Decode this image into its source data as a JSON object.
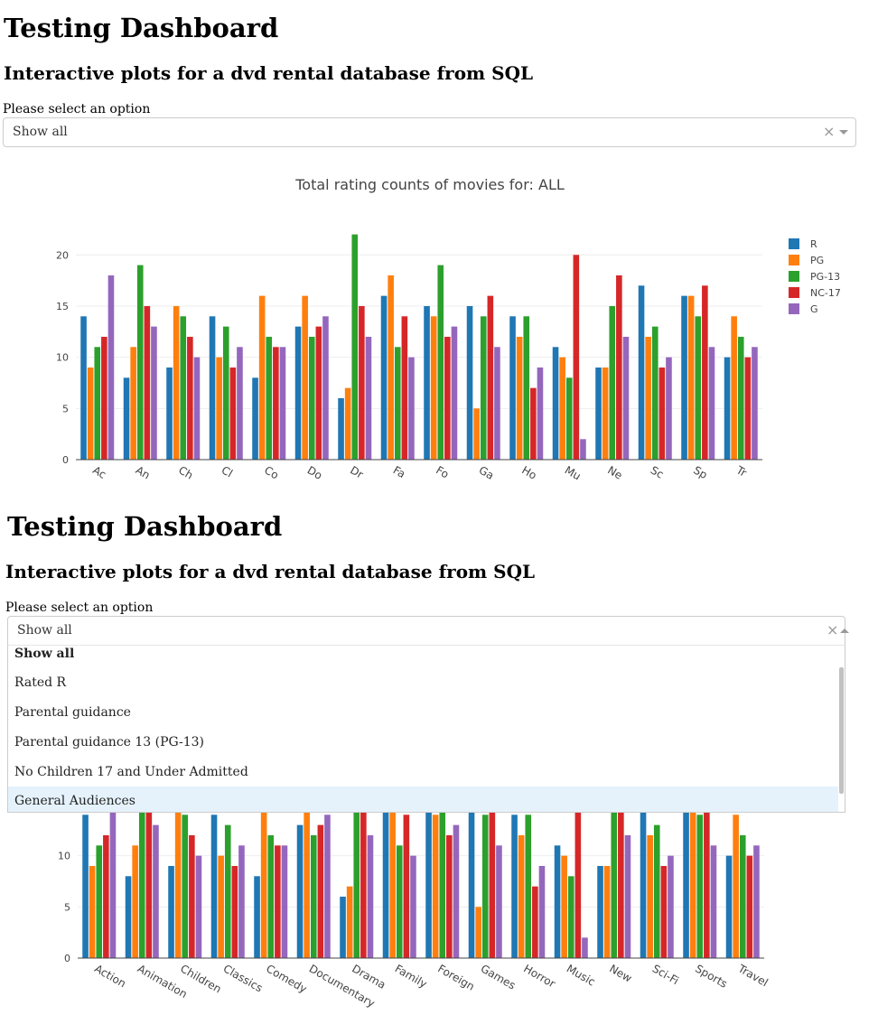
{
  "header": {
    "title": "Testing Dashboard",
    "subtitle": "Interactive plots for a dvd rental database from SQL"
  },
  "filter": {
    "label": "Please select an option",
    "selected": "Show all",
    "clear_glyph": "×",
    "options": [
      "Show all",
      "Rated R",
      "Parental guidance",
      "Parental guidance 13 (PG-13)",
      "No Children 17 and Under Admitted",
      "General Audiences"
    ],
    "highlighted_index": 5
  },
  "panel1_xlabels": [
    "Ac",
    "An",
    "Ch",
    "Cl",
    "Co",
    "Do",
    "Dr",
    "Fa",
    "Fo",
    "Ga",
    "Ho",
    "Mu",
    "Ne",
    "Sc",
    "Sp",
    "Tr"
  ],
  "icons": {
    "clear": "clear-x-icon",
    "dropdown": "chevron-down-icon",
    "dropup": "chevron-up-icon"
  },
  "chart_data": {
    "type": "bar",
    "title": "Total rating counts of movies for: ALL",
    "categories": [
      "Action",
      "Animation",
      "Children",
      "Classics",
      "Comedy",
      "Documentary",
      "Drama",
      "Family",
      "Foreign",
      "Games",
      "Horror",
      "Music",
      "New",
      "Sci-Fi",
      "Sports",
      "Travel"
    ],
    "series": [
      {
        "name": "R",
        "color": "#1f77b4",
        "values": [
          14,
          8,
          9,
          14,
          8,
          13,
          6,
          16,
          15,
          15,
          14,
          11,
          9,
          17,
          16,
          10
        ]
      },
      {
        "name": "PG",
        "color": "#ff7f0e",
        "values": [
          9,
          11,
          15,
          10,
          16,
          16,
          7,
          18,
          14,
          5,
          12,
          10,
          9,
          12,
          16,
          14
        ]
      },
      {
        "name": "PG-13",
        "color": "#2ca02c",
        "values": [
          11,
          19,
          14,
          13,
          12,
          12,
          22,
          11,
          19,
          14,
          14,
          8,
          15,
          13,
          14,
          12
        ]
      },
      {
        "name": "NC-17",
        "color": "#d62728",
        "values": [
          12,
          15,
          12,
          9,
          11,
          13,
          15,
          14,
          12,
          16,
          7,
          20,
          18,
          9,
          17,
          10
        ]
      },
      {
        "name": "G",
        "color": "#9467bd",
        "values": [
          18,
          13,
          10,
          11,
          11,
          14,
          12,
          10,
          13,
          11,
          9,
          2,
          12,
          10,
          11,
          11
        ]
      }
    ],
    "yticks": [
      0,
      5,
      10,
      15,
      20
    ],
    "ylim": [
      0,
      23.2
    ],
    "grid": true,
    "legend_position": "top-right"
  }
}
